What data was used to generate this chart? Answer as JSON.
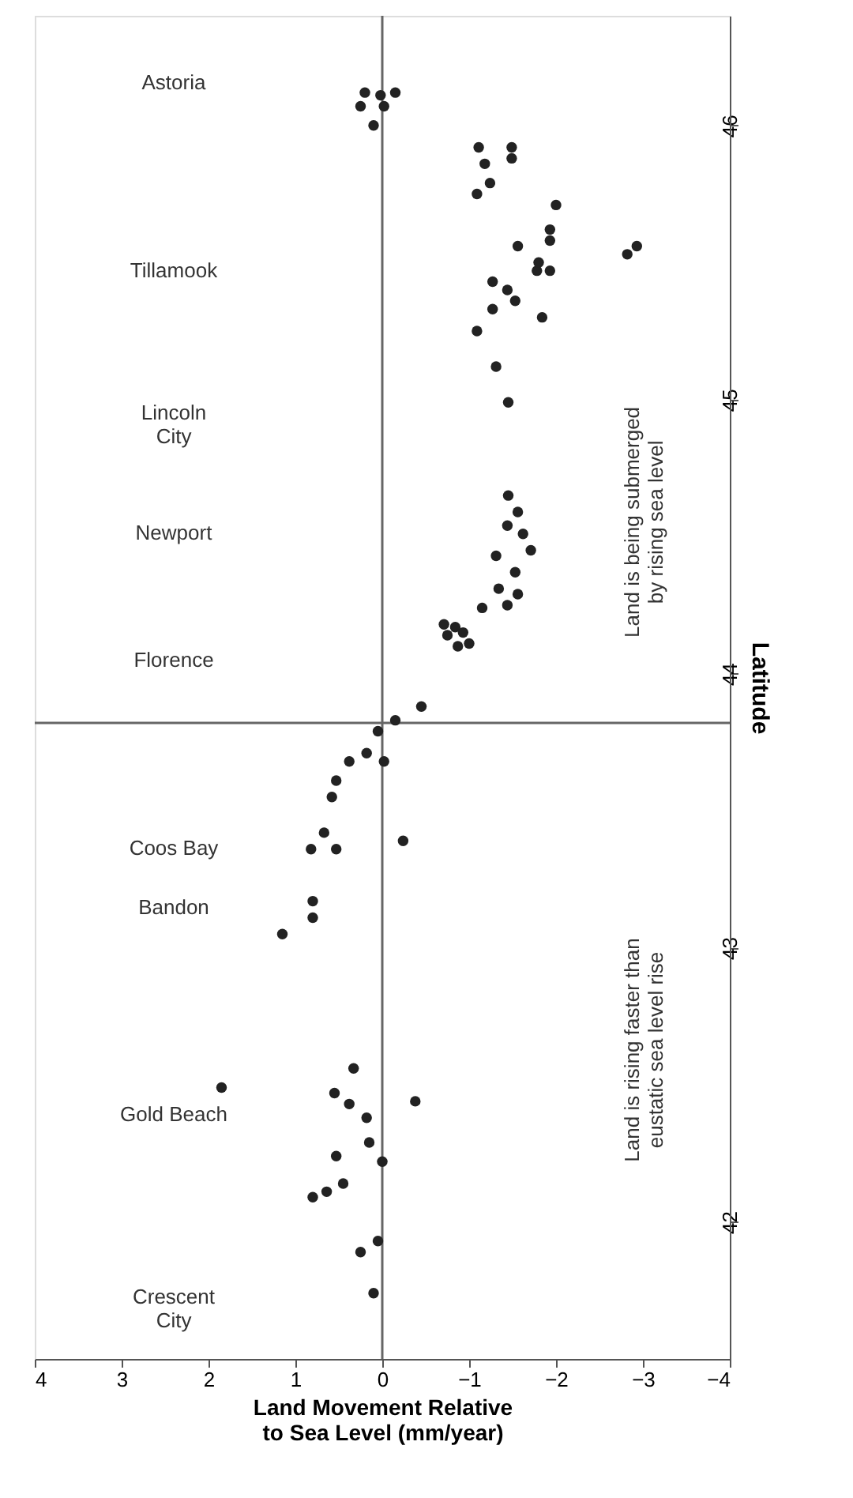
{
  "chart_data": {
    "type": "scatter",
    "xlabel": "Land Movement Relative\nto Sea Level (mm/year)",
    "ylabel": "Latitude",
    "xlim": [
      4,
      -4
    ],
    "xticks": [
      4,
      3,
      2,
      1,
      0,
      -1,
      -2,
      -3,
      -4
    ],
    "ylim": [
      41.5,
      46.4
    ],
    "yticks": [
      42,
      43,
      44,
      45,
      46
    ],
    "grid": false,
    "marker": "circle",
    "series": [
      {
        "color": "#222222",
        "x": [
          0.33,
          1.85,
          0.55,
          0.38,
          -0.38,
          0.18,
          0.15,
          0.53,
          0,
          0.45,
          0.64,
          0.8,
          0.05,
          0.25,
          0.1,
          1.15,
          0.8,
          0.8,
          0.82,
          0.53,
          0.67,
          -0.24,
          0.58,
          0.53,
          0.38,
          0.18,
          -0.02,
          0.05,
          -0.15,
          -0.45,
          -0.75,
          -0.87,
          -0.84,
          -0.71,
          -0.93,
          -1.0,
          -1.15,
          -1.44,
          -1.56,
          -1.34,
          -1.53,
          -1.31,
          -1.71,
          -1.62,
          -1.44,
          -1.56,
          -1.45,
          -1.45,
          -1.31,
          -1.09,
          -1.84,
          -1.27,
          -1.53,
          -1.44,
          -1.27,
          -1.78,
          -1.93,
          -1.8,
          -1.56,
          -1.93,
          -1.93,
          -2.82,
          -2.93,
          -2.0,
          -1.09,
          -1.24,
          -1.18,
          -1.49,
          -1.11,
          -1.49,
          0.1,
          0.25,
          -0.02,
          0.2,
          -0.15,
          0.02
        ],
        "values": [
          42.56,
          42.49,
          42.47,
          42.43,
          42.44,
          42.38,
          42.29,
          42.24,
          42.22,
          42.14,
          42.11,
          42.09,
          41.93,
          41.89,
          41.74,
          43.05,
          43.11,
          43.17,
          43.36,
          43.36,
          43.42,
          43.39,
          43.55,
          43.61,
          43.68,
          43.71,
          43.68,
          43.79,
          43.83,
          43.88,
          44.14,
          44.1,
          44.17,
          44.18,
          44.15,
          44.11,
          44.24,
          44.25,
          44.29,
          44.31,
          44.37,
          44.43,
          44.45,
          44.51,
          44.54,
          44.59,
          44.65,
          44.99,
          45.12,
          45.25,
          45.3,
          45.33,
          45.36,
          45.4,
          45.43,
          45.47,
          45.47,
          45.5,
          45.56,
          45.58,
          45.62,
          45.53,
          45.56,
          45.71,
          45.75,
          45.79,
          45.86,
          45.88,
          45.92,
          45.92,
          46.0,
          46.07,
          46.07,
          46.12,
          46.12,
          46.11
        ]
      }
    ],
    "ref_lines": [
      {
        "axis": "x",
        "value": 0,
        "color": "#666666"
      },
      {
        "axis": "y",
        "value": 43.82,
        "color": "#666666"
      }
    ],
    "annotations": [
      "Astoria",
      "Tillamook",
      "Lincoln\nCity",
      "Newport",
      "Florence",
      "Coos Bay",
      "Bandon",
      "Gold Beach",
      "Crescent\nCity",
      "Land is being submerged\nby rising sea level",
      "Land is rising faster than\neustatic sea level rise"
    ]
  }
}
